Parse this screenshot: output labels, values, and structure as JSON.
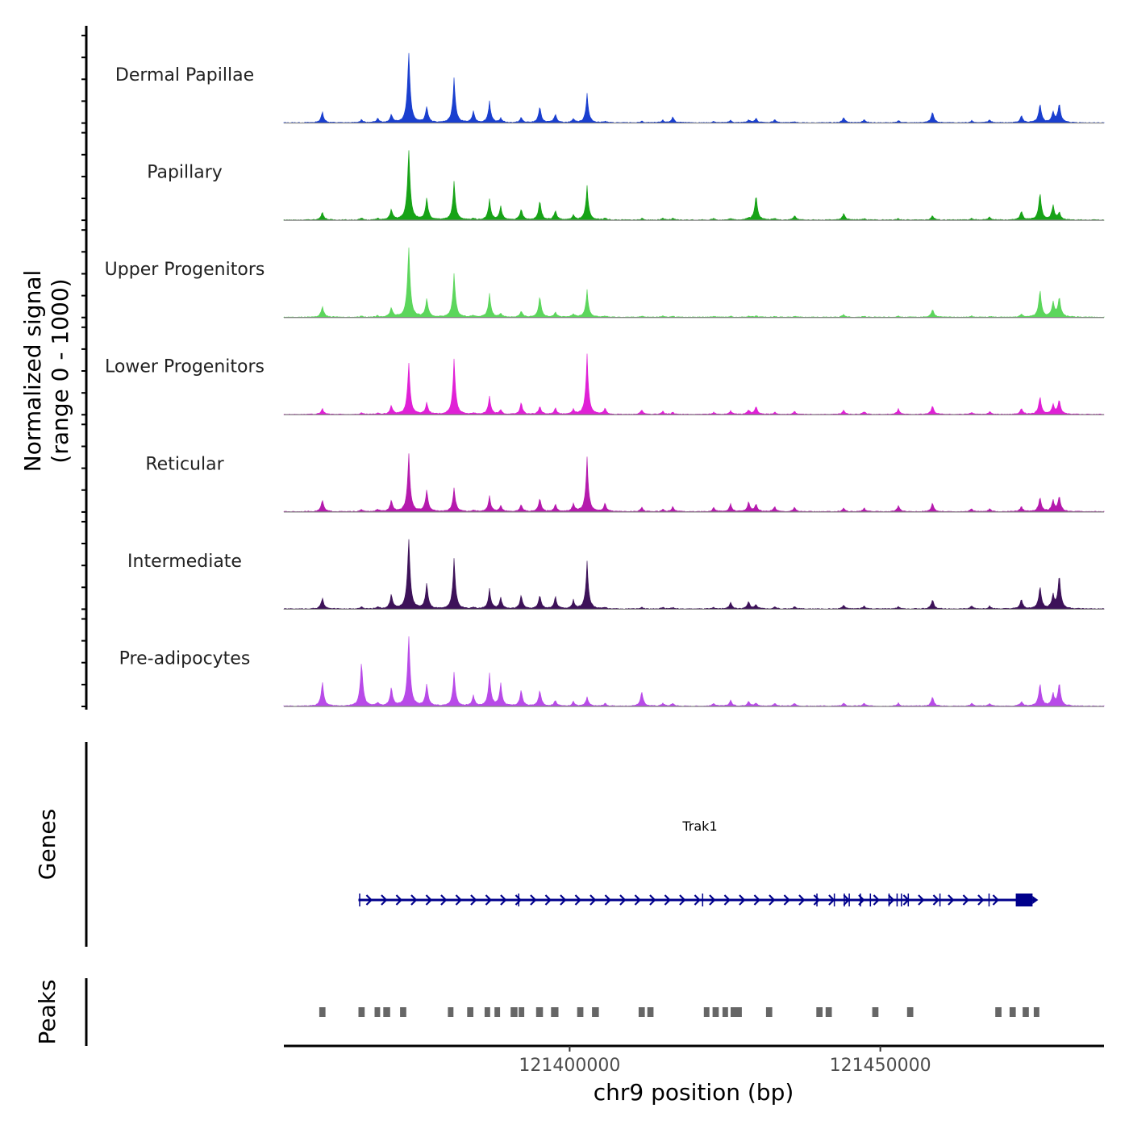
{
  "chart_data": {
    "type": "area",
    "title": "",
    "xlabel": "chr9 position (bp)",
    "ylabel_line1": "Normalized signal",
    "ylabel_line2": "(range 0 - 1000)",
    "xlim": [
      121354000,
      121486000
    ],
    "xticks": [
      121400000,
      121450000
    ],
    "xtick_labels": [
      "121400000",
      "121450000"
    ],
    "ylim": [
      0,
      1000
    ],
    "baseline_color": "#808080",
    "peak_centers": [
      121360200,
      121366500,
      121369100,
      121371300,
      121374100,
      121377000,
      121381400,
      121384500,
      121387100,
      121388900,
      121392200,
      121395200,
      121397700,
      121400600,
      121402800,
      121405700,
      121411600,
      121415000,
      121416600,
      121423200,
      121425900,
      121428800,
      121430000,
      121433000,
      121436200,
      121444100,
      121447400,
      121452900,
      121458400,
      121464700,
      121467600,
      121472700,
      121475700,
      121477800,
      121478800
    ],
    "series": [
      {
        "name": "Dermal Papillae",
        "color": "#1a3fcf",
        "values": [
          150,
          45,
          65,
          110,
          1000,
          220,
          600,
          150,
          280,
          60,
          70,
          220,
          120,
          50,
          380,
          20,
          20,
          30,
          80,
          20,
          30,
          40,
          60,
          45,
          15,
          70,
          40,
          30,
          150,
          30,
          40,
          100,
          260,
          140,
          270
        ]
      },
      {
        "name": "Papillary",
        "color": "#17a317",
        "values": [
          110,
          25,
          20,
          140,
          1000,
          300,
          520,
          20,
          270,
          180,
          150,
          270,
          130,
          60,
          440,
          25,
          20,
          20,
          20,
          20,
          20,
          20,
          350,
          20,
          60,
          90,
          20,
          20,
          60,
          20,
          40,
          120,
          380,
          200,
          100
        ]
      },
      {
        "name": "Upper Progenitors",
        "color": "#5cd65c",
        "values": [
          150,
          20,
          20,
          130,
          1000,
          250,
          590,
          20,
          310,
          50,
          80,
          290,
          70,
          40,
          360,
          15,
          15,
          15,
          15,
          15,
          15,
          15,
          20,
          15,
          15,
          40,
          15,
          15,
          110,
          15,
          15,
          40,
          380,
          200,
          280
        ]
      },
      {
        "name": "Lower Progenitors",
        "color": "#e020d6",
        "values": [
          80,
          20,
          20,
          120,
          700,
          160,
          740,
          20,
          240,
          60,
          160,
          110,
          90,
          60,
          780,
          80,
          60,
          40,
          30,
          30,
          50,
          60,
          110,
          30,
          40,
          60,
          40,
          70,
          120,
          30,
          40,
          80,
          250,
          130,
          200
        ]
      },
      {
        "name": "Reticular",
        "color": "#b51aad",
        "values": [
          160,
          30,
          30,
          160,
          780,
          300,
          320,
          20,
          200,
          80,
          100,
          180,
          100,
          100,
          700,
          110,
          60,
          30,
          70,
          60,
          100,
          130,
          100,
          70,
          60,
          50,
          50,
          80,
          120,
          40,
          40,
          70,
          200,
          150,
          210
        ]
      },
      {
        "name": "Intermediate",
        "color": "#3d1259",
        "values": [
          150,
          30,
          30,
          200,
          1000,
          350,
          680,
          20,
          260,
          150,
          190,
          190,
          170,
          110,
          620,
          20,
          20,
          20,
          20,
          20,
          90,
          100,
          60,
          30,
          30,
          50,
          40,
          30,
          130,
          40,
          40,
          130,
          310,
          180,
          470
        ]
      },
      {
        "name": "Pre-adipocytes",
        "color": "#b84ae8",
        "values": [
          330,
          620,
          40,
          250,
          1000,
          300,
          450,
          140,
          420,
          300,
          220,
          220,
          80,
          60,
          120,
          40,
          200,
          40,
          40,
          40,
          80,
          70,
          40,
          40,
          40,
          40,
          40,
          40,
          130,
          40,
          40,
          60,
          320,
          160,
          320
        ]
      }
    ],
    "genes_track": {
      "label": "Genes",
      "gene_name": "Trak1",
      "color": "#00008b",
      "start": 121366000,
      "end": 121474500,
      "strand": "+",
      "exons": [
        121366200,
        121391800,
        121421400,
        121439800,
        121442600,
        121444200,
        121445000,
        121446800,
        121448400,
        121451400,
        121452700,
        121453400,
        121454500,
        121459600,
        121467500
      ]
    },
    "peaks_track": {
      "label": "Peaks",
      "color": "#666666",
      "peaks": [
        [
          121359700,
          121360700
        ],
        [
          121366000,
          121367000
        ],
        [
          121368600,
          121369500
        ],
        [
          121370000,
          121371100
        ],
        [
          121372700,
          121373700
        ],
        [
          121380400,
          121381300
        ],
        [
          121383500,
          121384500
        ],
        [
          121386300,
          121387200
        ],
        [
          121387900,
          121388800
        ],
        [
          121390500,
          121391600
        ],
        [
          121391800,
          121392700
        ],
        [
          121394600,
          121395700
        ],
        [
          121397000,
          121398200
        ],
        [
          121401200,
          121402200
        ],
        [
          121403600,
          121404700
        ],
        [
          121411100,
          121412100
        ],
        [
          121412500,
          121413500
        ],
        [
          121421600,
          121422500
        ],
        [
          121423000,
          121424000
        ],
        [
          121424600,
          121425500
        ],
        [
          121425900,
          121427700
        ],
        [
          121431600,
          121432600
        ],
        [
          121439700,
          121440700
        ],
        [
          121441200,
          121442200
        ],
        [
          121448700,
          121449700
        ],
        [
          121454300,
          121455300
        ],
        [
          121468500,
          121469500
        ],
        [
          121470800,
          121471800
        ],
        [
          121472900,
          121473900
        ],
        [
          121474700,
          121475600
        ]
      ]
    }
  }
}
